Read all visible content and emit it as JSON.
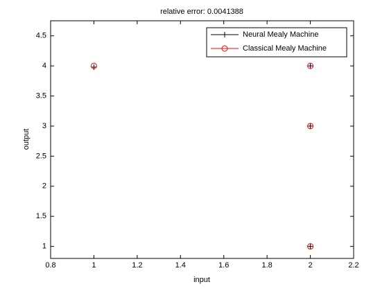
{
  "chart_data": {
    "type": "scatter",
    "title": "relative error: 0.0041388",
    "x_label": "input",
    "y_label": "output",
    "xlim": [
      0.8,
      2.2
    ],
    "xticks": [
      0.8,
      1,
      1.2,
      1.4,
      1.6,
      1.8,
      2,
      2.2
    ],
    "ylim": [
      0.8,
      4.75
    ],
    "yticks": [
      1,
      1.5,
      2,
      2.5,
      3,
      3.5,
      4,
      4.5
    ],
    "legend": "upper-right",
    "series": [
      {
        "name": "Neural Mealy Machine",
        "color": "#000000",
        "marker": "plus",
        "x": [
          1,
          2,
          2,
          2
        ],
        "values": [
          3.98,
          4,
          3,
          1
        ]
      },
      {
        "name": "Classical Mealy Machine",
        "color": "#ff0000",
        "marker": "circle",
        "x": [
          1,
          2,
          2,
          2
        ],
        "values": [
          4,
          4,
          3,
          1
        ]
      }
    ]
  }
}
